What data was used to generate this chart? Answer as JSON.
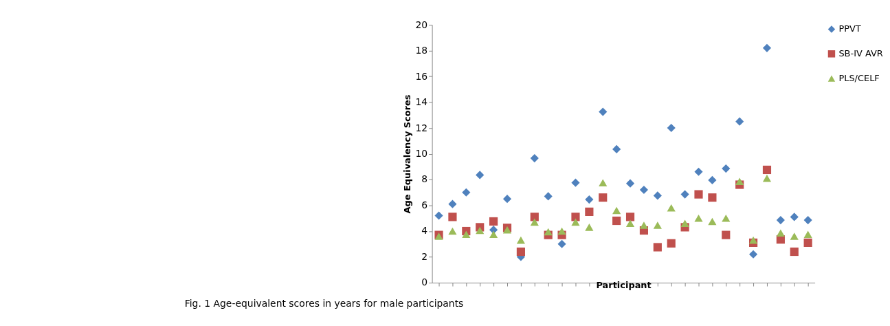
{
  "chart_data": {
    "type": "scatter",
    "xlabel": "Participant",
    "ylabel": "Age Equivalency Scores",
    "annotations": [
      "Fig. 1 Age-equivalent scores in years for male participants"
    ],
    "categories": [
      null,
      null,
      null,
      null,
      null,
      null,
      null,
      null,
      null,
      null,
      null,
      null,
      null,
      null,
      null,
      null,
      null,
      null,
      null,
      null,
      null,
      null,
      null,
      null,
      null,
      null,
      null,
      null
    ],
    "series": [
      {
        "name": "PPVT",
        "color": "#4f81bd",
        "marker": "diamond",
        "values": [
          5.2,
          6.1,
          7.0,
          8.35,
          4.1,
          6.5,
          2.0,
          9.65,
          6.7,
          3.0,
          7.75,
          6.45,
          13.25,
          10.35,
          7.7,
          7.2,
          6.75,
          12.0,
          6.85,
          8.6,
          7.95,
          8.85,
          12.5,
          2.2,
          18.2,
          4.85,
          5.1,
          4.85
        ]
      },
      {
        "name": "SB-IV AVR",
        "color": "#c0504d",
        "marker": "square",
        "values": [
          3.7,
          5.1,
          4.0,
          4.3,
          4.75,
          4.25,
          2.4,
          5.1,
          3.7,
          3.7,
          5.1,
          5.5,
          6.6,
          4.8,
          5.1,
          4.05,
          2.75,
          3.05,
          4.3,
          6.85,
          6.6,
          3.7,
          7.6,
          3.1,
          8.75,
          3.35,
          2.4,
          3.1
        ]
      },
      {
        "name": "PLS/CELF",
        "color": "#9bbb59",
        "marker": "triangle",
        "values": [
          3.6,
          4.0,
          3.75,
          4.05,
          3.75,
          4.1,
          3.3,
          4.7,
          3.95,
          4.0,
          4.7,
          4.3,
          7.75,
          5.6,
          4.6,
          4.45,
          4.45,
          5.8,
          4.6,
          5.0,
          4.75,
          5.0,
          7.85,
          3.3,
          8.1,
          3.85,
          3.6,
          3.75
        ]
      }
    ],
    "ylim": [
      0,
      20
    ],
    "yticks": [
      0,
      2,
      4,
      6,
      8,
      10,
      12,
      14,
      16,
      18,
      20
    ],
    "grid": false,
    "legend": "right",
    "tick_labels": "y"
  }
}
